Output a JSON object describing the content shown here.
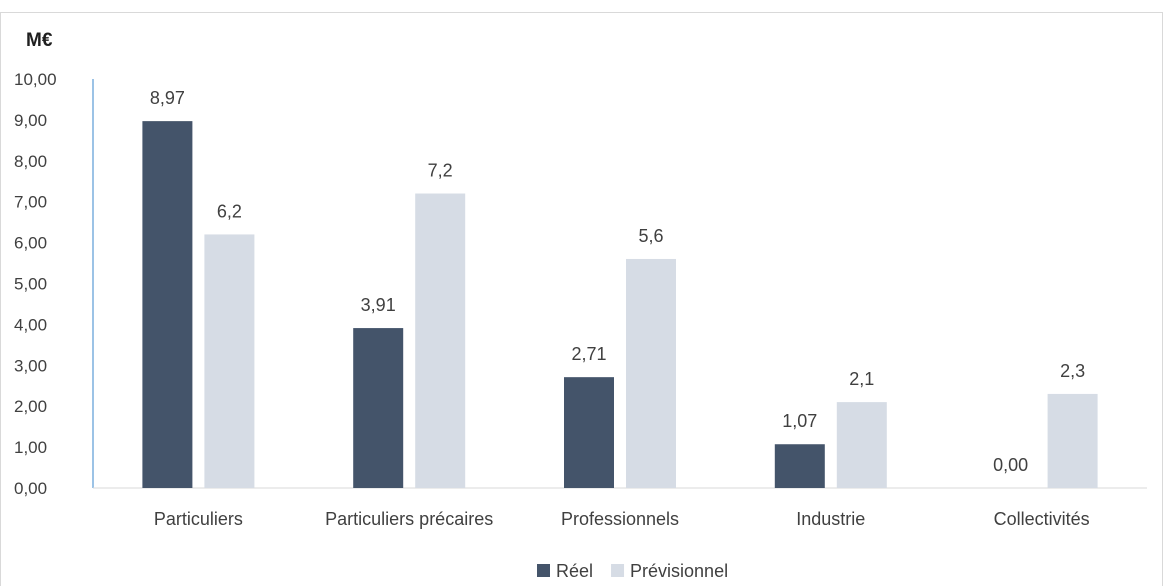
{
  "chart_data": {
    "type": "bar",
    "unit_label": "M€",
    "categories": [
      "Particuliers",
      "Particuliers précaires",
      "Professionnels",
      "Industrie",
      "Collectivités"
    ],
    "series": [
      {
        "name": "Réel",
        "values": [
          8.97,
          3.91,
          2.71,
          1.07,
          0.0
        ],
        "labels": [
          "8,97",
          "3,91",
          "2,71",
          "1,07",
          "0,00"
        ],
        "color": "#44546a"
      },
      {
        "name": "Prévisionnel",
        "values": [
          6.2,
          7.2,
          5.6,
          2.1,
          2.3
        ],
        "labels": [
          "6,2",
          "7,2",
          "5,6",
          "2,1",
          "2,3"
        ],
        "color": "#d6dce5"
      }
    ],
    "ylim": [
      0,
      10
    ],
    "yticks": [
      "0,00",
      "1,00",
      "2,00",
      "3,00",
      "4,00",
      "5,00",
      "6,00",
      "7,00",
      "8,00",
      "9,00",
      "10,00"
    ],
    "grid": false,
    "legend_position": "bottom",
    "axis_color": "#5b9bd5"
  }
}
